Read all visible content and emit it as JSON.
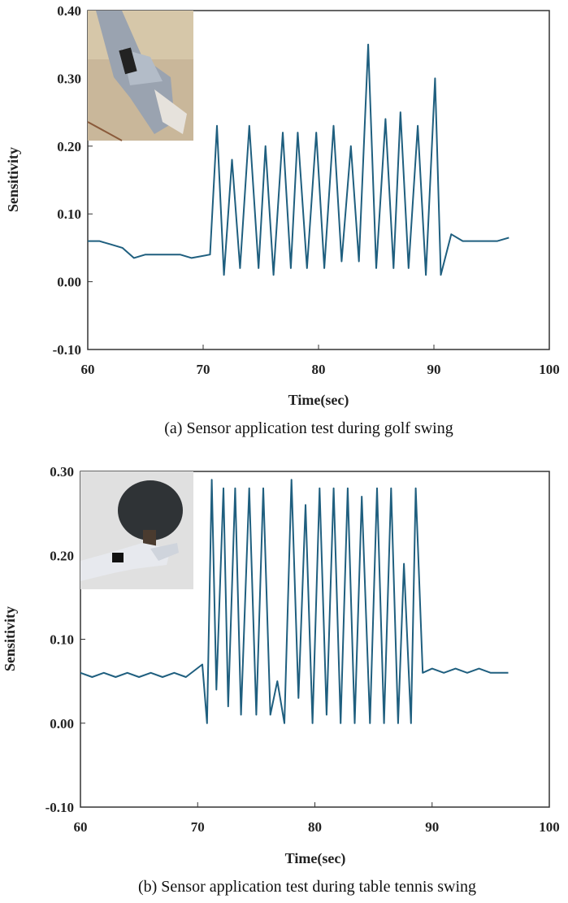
{
  "figure": {
    "panels": [
      {
        "caption": "(a)  Sensor application test during golf swing",
        "inset_photo": "hand-in-golf-glove-with-sensor"
      },
      {
        "caption": "(b)  Sensor application test during table tennis swing",
        "inset_photo": "hand-holding-table-tennis-paddle-with-sensor"
      }
    ]
  },
  "chart_data": [
    {
      "type": "line",
      "title": "",
      "xlabel": "Time(sec)",
      "ylabel": "Sensitivity",
      "xlim": [
        60,
        100
      ],
      "ylim": [
        -0.1,
        0.4
      ],
      "xticks": [
        "60",
        "70",
        "80",
        "90",
        "100"
      ],
      "yticks": [
        "-0.10",
        "0.00",
        "0.10",
        "0.20",
        "0.30",
        "0.40"
      ],
      "grid": false,
      "line_color": "#1f5f7f",
      "series": [
        {
          "x": [
            60,
            61,
            62,
            63,
            64,
            65,
            66,
            67,
            68,
            69,
            70.6,
            71.2,
            71.8,
            72.5,
            73.2,
            74.0,
            74.8,
            75.4,
            76.1,
            76.9,
            77.6,
            78.2,
            79.0,
            79.8,
            80.5,
            81.3,
            82.0,
            82.8,
            83.5,
            84.3,
            85.0,
            85.8,
            86.5,
            87.1,
            87.8,
            88.6,
            89.3,
            90.1,
            90.6,
            91.5,
            92.5,
            93.5,
            94.5,
            95.5,
            96.5
          ],
          "y": [
            0.06,
            0.06,
            0.055,
            0.05,
            0.035,
            0.04,
            0.04,
            0.04,
            0.04,
            0.035,
            0.04,
            0.23,
            0.01,
            0.18,
            0.02,
            0.23,
            0.02,
            0.2,
            0.01,
            0.22,
            0.02,
            0.22,
            0.02,
            0.22,
            0.02,
            0.23,
            0.03,
            0.2,
            0.03,
            0.35,
            0.02,
            0.24,
            0.02,
            0.25,
            0.02,
            0.23,
            0.01,
            0.3,
            0.01,
            0.07,
            0.06,
            0.06,
            0.06,
            0.06,
            0.065
          ]
        }
      ]
    },
    {
      "type": "line",
      "title": "",
      "xlabel": "Time(sec)",
      "ylabel": "Sensitivity",
      "xlim": [
        60,
        100
      ],
      "ylim": [
        -0.1,
        0.3
      ],
      "xticks": [
        "60",
        "70",
        "80",
        "90",
        "100"
      ],
      "yticks": [
        "-0.10",
        "0.00",
        "0.10",
        "0.20",
        "0.30"
      ],
      "grid": false,
      "line_color": "#1f5f7f",
      "series": [
        {
          "x": [
            60,
            61,
            62,
            63,
            64,
            65,
            66,
            67,
            68,
            69,
            70.4,
            70.8,
            71.2,
            71.6,
            72.2,
            72.6,
            73.2,
            73.7,
            74.4,
            75.0,
            75.6,
            76.2,
            76.8,
            77.4,
            78.0,
            78.6,
            79.2,
            79.8,
            80.4,
            81.0,
            81.6,
            82.2,
            82.8,
            83.4,
            84.0,
            84.7,
            85.3,
            85.9,
            86.5,
            87.1,
            87.6,
            88.2,
            88.6,
            89.2,
            90,
            91,
            92,
            93,
            94,
            95,
            96.5
          ],
          "y": [
            0.06,
            0.055,
            0.06,
            0.055,
            0.06,
            0.055,
            0.06,
            0.055,
            0.06,
            0.055,
            0.07,
            0.0,
            0.29,
            0.04,
            0.28,
            0.02,
            0.28,
            0.01,
            0.28,
            0.01,
            0.28,
            0.01,
            0.05,
            0.0,
            0.29,
            0.03,
            0.26,
            0.0,
            0.28,
            0.01,
            0.28,
            0.0,
            0.28,
            0.0,
            0.27,
            0.0,
            0.28,
            0.0,
            0.28,
            0.0,
            0.19,
            0.0,
            0.28,
            0.06,
            0.065,
            0.06,
            0.065,
            0.06,
            0.065,
            0.06,
            0.06
          ]
        }
      ]
    }
  ]
}
